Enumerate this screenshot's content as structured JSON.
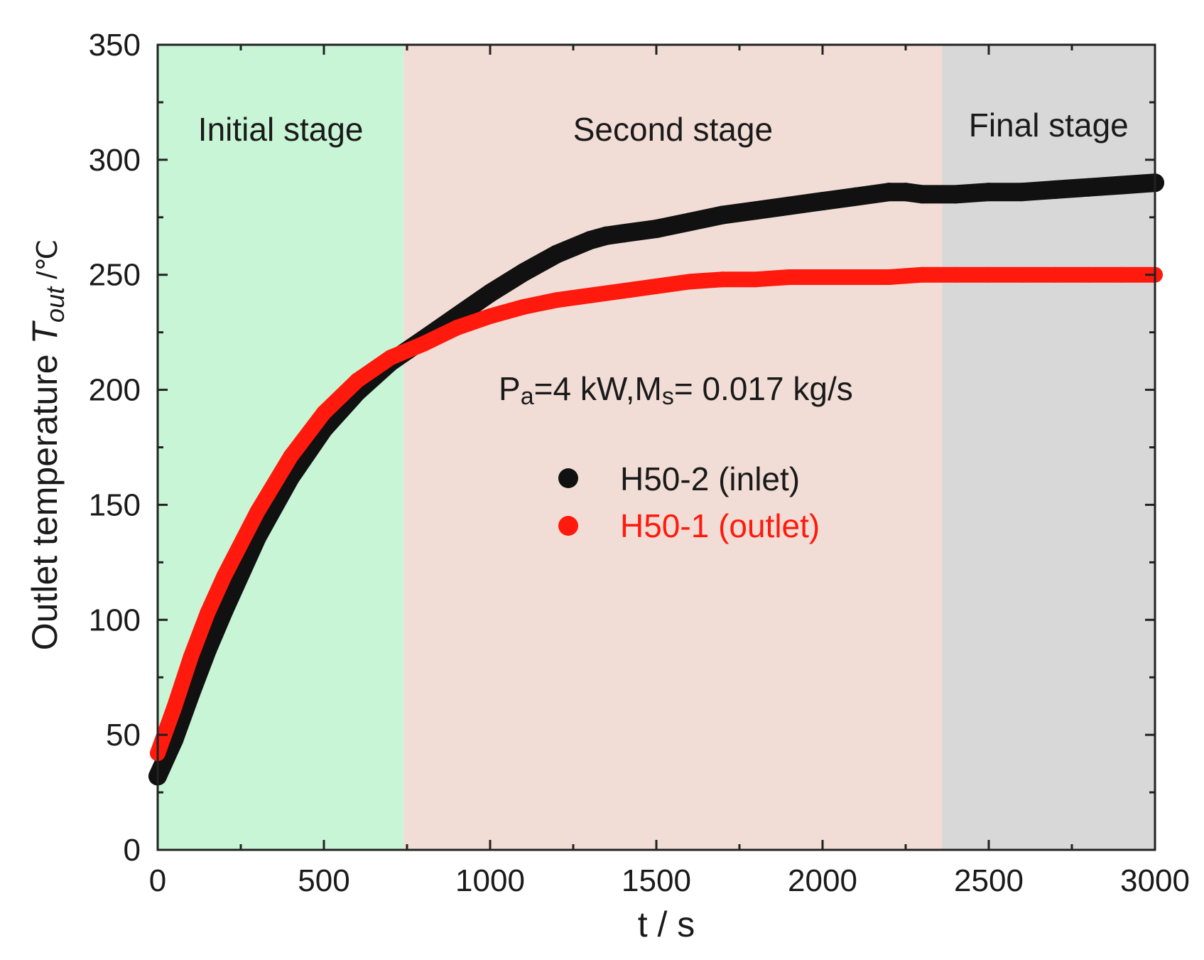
{
  "chart_data": {
    "type": "scatter",
    "title": "",
    "xlabel": "t / s",
    "ylabel": {
      "prefix": "Outlet temperature ",
      "symbol": "T",
      "subscript": "out",
      "unit": " /℃"
    },
    "xlim": [
      0,
      3000
    ],
    "ylim": [
      0,
      350
    ],
    "xticks": [
      0,
      500,
      1000,
      1500,
      2000,
      2500,
      3000
    ],
    "yticks": [
      0,
      50,
      100,
      150,
      200,
      250,
      300,
      350
    ],
    "grid": false,
    "legend_position": "center",
    "annotation": {
      "p": "P",
      "p_sub": "a",
      "mid": "=4 kW,M",
      "m_sub": "s",
      "tail": "= 0.017 kg/s"
    },
    "stages": [
      {
        "label": "Initial stage",
        "x_start": 0,
        "x_end": 740,
        "color": "#c8f5d6"
      },
      {
        "label": "Second stage",
        "x_start": 740,
        "x_end": 2360,
        "color": "#f1ddd6"
      },
      {
        "label": "Final stage",
        "x_start": 2360,
        "x_end": 3000,
        "color": "#d8d8d8"
      }
    ],
    "series": [
      {
        "name": "H50-2 (inlet)",
        "color": "#111111",
        "x": [
          0,
          50,
          100,
          150,
          200,
          300,
          400,
          500,
          600,
          700,
          750,
          800,
          900,
          1000,
          1100,
          1200,
          1300,
          1350,
          1400,
          1500,
          1600,
          1700,
          1800,
          1900,
          2000,
          2100,
          2200,
          2250,
          2300,
          2400,
          2500,
          2600,
          2700,
          2800,
          2900,
          3000
        ],
        "y": [
          32,
          48,
          68,
          87,
          104,
          136,
          162,
          183,
          199,
          212,
          217,
          222,
          232,
          242,
          251,
          259,
          265,
          267,
          268,
          270,
          273,
          276,
          278,
          280,
          282,
          284,
          286,
          286,
          285,
          285,
          286,
          286,
          287,
          288,
          289,
          290
        ]
      },
      {
        "name": "H50-1 (outlet)",
        "color": "#ff1a0d",
        "x": [
          0,
          50,
          100,
          150,
          200,
          300,
          400,
          500,
          600,
          700,
          750,
          800,
          900,
          1000,
          1100,
          1200,
          1300,
          1400,
          1500,
          1600,
          1700,
          1800,
          1900,
          2000,
          2100,
          2200,
          2300,
          2400,
          2500,
          2600,
          2700,
          2800,
          2900,
          3000
        ],
        "y": [
          42,
          62,
          84,
          103,
          119,
          147,
          171,
          190,
          204,
          214,
          217,
          220,
          227,
          232,
          236,
          239,
          241,
          243,
          245,
          247,
          248,
          248,
          249,
          249,
          249,
          249,
          250,
          250,
          250,
          250,
          250,
          250,
          250,
          250
        ]
      }
    ]
  }
}
